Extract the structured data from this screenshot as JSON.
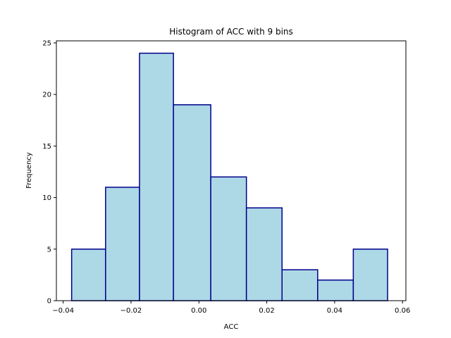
{
  "chart_data": {
    "type": "bar",
    "title": "Histogram of ACC with 9 bins",
    "xlabel": "ACC",
    "ylabel": "Frequency",
    "bin_edges": [
      -0.0375,
      -0.0275,
      -0.0175,
      -0.0075,
      0.0035,
      0.014,
      0.0245,
      0.035,
      0.0455,
      0.0556
    ],
    "values": [
      5,
      11,
      24,
      19,
      12,
      9,
      3,
      2,
      5
    ],
    "xlim": [
      -0.042,
      0.061
    ],
    "ylim": [
      0,
      25.2
    ],
    "x_ticks": [
      -0.04,
      -0.02,
      0.0,
      0.02,
      0.04,
      0.06
    ],
    "x_tick_labels": [
      "−0.04",
      "−0.02",
      "0.00",
      "0.02",
      "0.04",
      "0.06"
    ],
    "y_ticks": [
      0,
      5,
      10,
      15,
      20,
      25
    ],
    "y_tick_labels": [
      "0",
      "5",
      "10",
      "15",
      "20",
      "25"
    ],
    "bar_fill": "#add8e6",
    "bar_edge": "#00008b",
    "grid": false
  }
}
